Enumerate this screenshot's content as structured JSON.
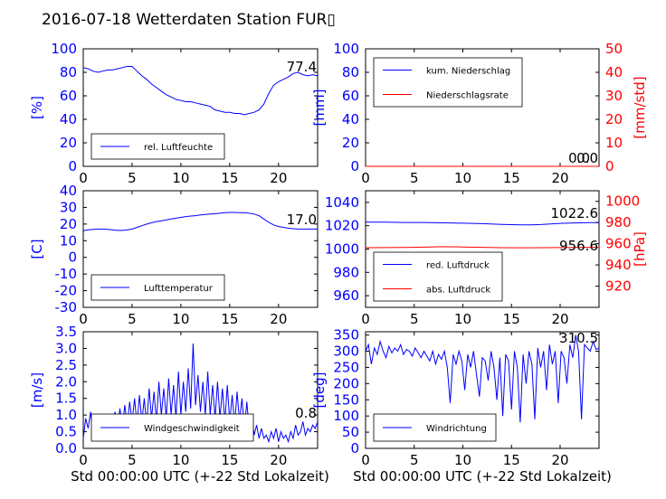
{
  "figure": {
    "title": "2016-07-18 Wetterdaten Station FUR▯",
    "xlabel": "Std 00:00:00 UTC (+-22 Std Lokalzeit)"
  },
  "colors": {
    "left_axis": "#0000ff",
    "right_axis": "#ff0000",
    "series_blue": "#0000ff",
    "series_red": "#ff0000"
  },
  "chart_data": [
    {
      "id": "humidity",
      "type": "line",
      "xlim": [
        0,
        24
      ],
      "ylim": [
        0,
        100
      ],
      "xticks": [
        0,
        5,
        10,
        15,
        20
      ],
      "yticks": [
        0,
        20,
        40,
        60,
        80,
        100
      ],
      "ylabel": "[%]",
      "series": [
        {
          "name": "rel. Luftfeuchte",
          "color": "#0000ff",
          "x": [
            0,
            0.5,
            1,
            1.5,
            2,
            2.5,
            3,
            3.5,
            4,
            4.5,
            5,
            5.5,
            6,
            6.5,
            7,
            7.5,
            8,
            8.5,
            9,
            9.5,
            10,
            10.5,
            11,
            11.5,
            12,
            12.5,
            13,
            13.5,
            14,
            14.5,
            15,
            15.5,
            16,
            16.5,
            17,
            17.5,
            18,
            18.5,
            19,
            19.5,
            20,
            20.5,
            21,
            21.5,
            22,
            22.5,
            23,
            23.5,
            24
          ],
          "y": [
            84,
            83,
            81,
            80,
            81,
            82,
            82,
            83,
            84,
            85,
            85,
            81,
            77,
            74,
            70,
            67,
            64,
            61,
            59,
            57,
            56,
            55,
            55,
            54,
            53,
            52,
            51,
            48,
            47,
            46,
            46,
            45,
            45,
            44,
            45,
            46,
            48,
            53,
            62,
            69,
            72,
            74,
            76,
            79,
            80,
            78,
            77,
            78,
            77
          ]
        }
      ],
      "last_value": "77.4"
    },
    {
      "id": "precipitation",
      "type": "line",
      "xlim": [
        0,
        24
      ],
      "ylim": [
        0,
        100
      ],
      "ylim_right": [
        0,
        50
      ],
      "xticks": [
        0,
        5,
        10,
        15,
        20
      ],
      "yticks": [
        0,
        20,
        40,
        60,
        80,
        100
      ],
      "yticks_right": [
        0,
        10,
        20,
        30,
        40,
        50
      ],
      "ylabel": "[mm]",
      "ylabel_right": "[mm/std]",
      "series": [
        {
          "name": "kum. Niederschlag",
          "color": "#0000ff",
          "axis": "left",
          "x": [
            0,
            24
          ],
          "y": [
            0,
            0
          ]
        },
        {
          "name": "Niederschlagsrate",
          "color": "#ff0000",
          "axis": "right",
          "x": [
            0,
            24
          ],
          "y": [
            0,
            0
          ]
        }
      ],
      "last_value_1": "0.0",
      "last_value_2": "0.0"
    },
    {
      "id": "temperature",
      "type": "line",
      "xlim": [
        0,
        24
      ],
      "ylim": [
        -30,
        40
      ],
      "xticks": [
        0,
        5,
        10,
        15,
        20
      ],
      "yticks": [
        -30,
        -20,
        -10,
        0,
        10,
        20,
        30,
        40
      ],
      "ylabel": "[C]",
      "series": [
        {
          "name": "Lufttemperatur",
          "color": "#0000ff",
          "x": [
            0,
            0.5,
            1,
            1.5,
            2,
            2.5,
            3,
            3.5,
            4,
            4.5,
            5,
            5.5,
            6,
            6.5,
            7,
            7.5,
            8,
            8.5,
            9,
            9.5,
            10,
            10.5,
            11,
            11.5,
            12,
            12.5,
            13,
            13.5,
            14,
            14.5,
            15,
            15.5,
            16,
            16.5,
            17,
            17.5,
            18,
            18.5,
            19,
            19.5,
            20,
            20.5,
            21,
            21.5,
            22,
            22.5,
            23,
            23.5,
            24
          ],
          "y": [
            16,
            16.5,
            16.8,
            17,
            17,
            16.8,
            16.5,
            16.2,
            16.2,
            16.5,
            17,
            18,
            19,
            20,
            20.8,
            21.5,
            22,
            22.5,
            23,
            23.5,
            24,
            24.5,
            24.8,
            25,
            25.5,
            25.8,
            26,
            26.2,
            26.5,
            26.8,
            27,
            27,
            26.8,
            26.8,
            26.5,
            26,
            25,
            23,
            21,
            19.5,
            18.5,
            18,
            17.5,
            17.2,
            17,
            17,
            17,
            17,
            17
          ]
        }
      ],
      "last_value": "17.0"
    },
    {
      "id": "pressure",
      "type": "line",
      "xlim": [
        0,
        24
      ],
      "ylim": [
        950,
        1050
      ],
      "ylim_right": [
        900,
        1010
      ],
      "xticks": [
        0,
        5,
        10,
        15,
        20
      ],
      "yticks": [
        960,
        980,
        1000,
        1020,
        1040
      ],
      "yticks_right": [
        920,
        940,
        960,
        980,
        1000
      ],
      "ylabel_right": "[hPa]",
      "series": [
        {
          "name": "red. Luftdruck",
          "color": "#0000ff",
          "axis": "left",
          "x": [
            0,
            2,
            4,
            6,
            8,
            10,
            12,
            14,
            16,
            17,
            18,
            19,
            20,
            21,
            22,
            23,
            24
          ],
          "y": [
            1023,
            1023,
            1022.8,
            1022.8,
            1022.5,
            1022.2,
            1021.8,
            1021.2,
            1020.8,
            1020.8,
            1021,
            1021.5,
            1022,
            1022.3,
            1022.5,
            1022.6,
            1022.6
          ]
        },
        {
          "name": "abs. Luftdruck",
          "color": "#ff0000",
          "axis": "right",
          "x": [
            0,
            2,
            4,
            6,
            8,
            10,
            12,
            14,
            16,
            18,
            20,
            22,
            24
          ],
          "y": [
            956.3,
            956.4,
            956.5,
            956.8,
            957.2,
            957,
            956.6,
            956.3,
            956.2,
            956.3,
            956.4,
            956.6,
            956.6
          ]
        }
      ],
      "last_value_1": "1022.6",
      "last_value_2": "956.6"
    },
    {
      "id": "wind_speed",
      "type": "line",
      "xlim": [
        0,
        24
      ],
      "ylim": [
        0,
        3.5
      ],
      "xticks": [
        0,
        5,
        10,
        15,
        20
      ],
      "yticks": [
        0.0,
        0.5,
        1.0,
        1.5,
        2.0,
        2.5,
        3.0,
        3.5
      ],
      "ylabel": "[m/s]",
      "series": [
        {
          "name": "Windgeschwindigkeit",
          "color": "#0000ff",
          "x": [
            0,
            0.25,
            0.5,
            0.75,
            1,
            1.25,
            1.5,
            1.75,
            2,
            2.25,
            2.5,
            2.75,
            3,
            3.25,
            3.5,
            3.75,
            4,
            4.25,
            4.5,
            4.75,
            5,
            5.25,
            5.5,
            5.75,
            6,
            6.25,
            6.5,
            6.75,
            7,
            7.25,
            7.5,
            7.75,
            8,
            8.25,
            8.5,
            8.75,
            9,
            9.25,
            9.5,
            9.75,
            10,
            10.25,
            10.5,
            10.75,
            11,
            11.25,
            11.5,
            11.75,
            12,
            12.25,
            12.5,
            12.75,
            13,
            13.25,
            13.5,
            13.75,
            14,
            14.25,
            14.5,
            14.75,
            15,
            15.25,
            15.5,
            15.75,
            16,
            16.25,
            16.5,
            16.75,
            17,
            17.25,
            17.5,
            17.75,
            18,
            18.25,
            18.5,
            18.75,
            19,
            19.25,
            19.5,
            19.75,
            20,
            20.25,
            20.5,
            20.75,
            21,
            21.25,
            21.5,
            21.75,
            22,
            22.25,
            22.5,
            22.75,
            23,
            23.25,
            23.5,
            23.75,
            24
          ],
          "y": [
            0.3,
            0.9,
            0.6,
            1.1,
            0.4,
            0.8,
            0.5,
            1.0,
            0.4,
            0.9,
            0.5,
            1.0,
            0.6,
            1.1,
            0.5,
            1.2,
            0.6,
            1.3,
            0.7,
            1.4,
            0.8,
            1.5,
            0.7,
            1.6,
            0.8,
            1.5,
            0.7,
            1.8,
            0.9,
            1.7,
            0.8,
            2.0,
            1.0,
            1.8,
            0.9,
            2.1,
            1.0,
            1.9,
            0.9,
            2.3,
            1.0,
            2.0,
            1.1,
            2.4,
            1.2,
            3.15,
            1.3,
            2.2,
            1.1,
            2.0,
            1.0,
            2.3,
            1.0,
            1.9,
            0.9,
            2.0,
            0.9,
            1.8,
            0.8,
            1.9,
            0.8,
            1.6,
            0.7,
            1.7,
            0.8,
            1.5,
            0.6,
            1.4,
            0.5,
            1.0,
            0.4,
            0.7,
            0.3,
            0.6,
            0.3,
            0.4,
            0.2,
            0.5,
            0.3,
            0.6,
            0.2,
            0.5,
            0.3,
            0.4,
            0.2,
            0.5,
            0.3,
            0.7,
            0.4,
            0.5,
            0.8,
            0.4,
            0.6,
            0.5,
            0.7,
            0.6,
            0.8
          ]
        }
      ],
      "last_value": "0.8"
    },
    {
      "id": "wind_direction",
      "type": "line",
      "xlim": [
        0,
        24
      ],
      "ylim": [
        0,
        360
      ],
      "xticks": [
        0,
        5,
        10,
        15,
        20
      ],
      "yticks": [
        0,
        50,
        100,
        150,
        200,
        250,
        300,
        350
      ],
      "ylabel": "[deg]",
      "series": [
        {
          "name": "Windrichtung",
          "color": "#0000ff",
          "x": [
            0,
            0.3,
            0.6,
            0.9,
            1.2,
            1.5,
            1.8,
            2.1,
            2.4,
            2.7,
            3,
            3.3,
            3.6,
            3.9,
            4.2,
            4.5,
            4.8,
            5.1,
            5.4,
            5.7,
            6,
            6.3,
            6.6,
            6.9,
            7.2,
            7.5,
            7.8,
            8.1,
            8.4,
            8.7,
            9,
            9.3,
            9.6,
            9.9,
            10.2,
            10.5,
            10.8,
            11.1,
            11.4,
            11.7,
            12,
            12.3,
            12.6,
            12.9,
            13.2,
            13.5,
            13.8,
            14.1,
            14.4,
            14.7,
            15,
            15.3,
            15.6,
            15.9,
            16.2,
            16.5,
            16.8,
            17.1,
            17.4,
            17.7,
            18,
            18.3,
            18.6,
            18.9,
            19.2,
            19.5,
            19.8,
            20.1,
            20.4,
            20.7,
            21,
            21.3,
            21.6,
            21.9,
            22.2,
            22.5,
            22.8,
            23.1,
            23.4,
            23.7,
            24
          ],
          "y": [
            300,
            320,
            260,
            310,
            290,
            330,
            300,
            280,
            315,
            295,
            310,
            300,
            320,
            290,
            305,
            300,
            285,
            310,
            295,
            280,
            300,
            285,
            270,
            300,
            260,
            290,
            275,
            300,
            250,
            140,
            290,
            260,
            300,
            270,
            180,
            290,
            250,
            300,
            230,
            160,
            280,
            270,
            210,
            300,
            250,
            150,
            280,
            100,
            290,
            270,
            120,
            300,
            250,
            80,
            290,
            200,
            300,
            260,
            90,
            310,
            250,
            300,
            180,
            320,
            260,
            300,
            140,
            300,
            280,
            200,
            320,
            280,
            350,
            300,
            90,
            320,
            310,
            300,
            330,
            305,
            310
          ]
        }
      ],
      "last_value": "310.5"
    }
  ]
}
